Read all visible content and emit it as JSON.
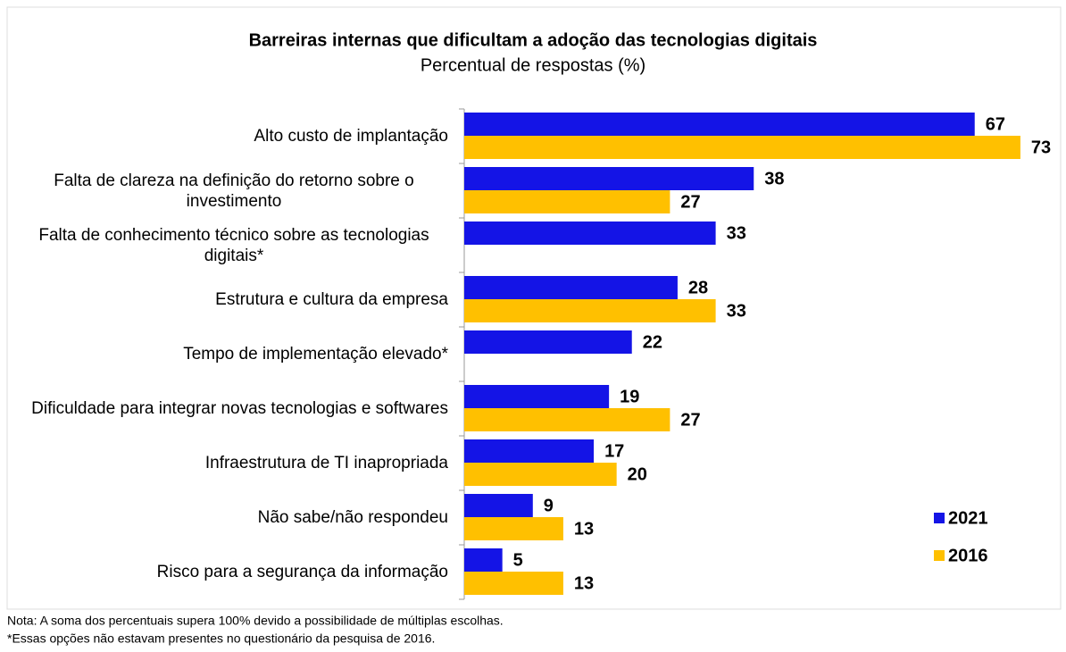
{
  "chart_data": {
    "type": "hbar",
    "title": "Barreiras internas que dificultam a adoção das tecnologias digitais",
    "subtitle": "Percentual de respostas (%)",
    "categories": [
      "Alto custo de implantação",
      "Falta de clareza na definição do retorno sobre o investimento",
      "Falta de conhecimento técnico sobre as tecnologias digitais*",
      "Estrutura e cultura da empresa",
      "Tempo de implementação elevado*",
      "Dificuldade para integrar novas tecnologias e softwares",
      "Infraestrutura de TI inapropriada",
      "Não sabe/não respondeu",
      "Risco para a segurança da informação"
    ],
    "series": [
      {
        "name": "2021",
        "color": "#1414e6",
        "values": [
          67,
          38,
          33,
          28,
          22,
          19,
          17,
          9,
          5
        ]
      },
      {
        "name": "2016",
        "color": "#ffc000",
        "values": [
          73,
          27,
          null,
          33,
          null,
          27,
          20,
          13,
          13
        ]
      }
    ],
    "xlim": [
      0,
      75
    ],
    "legend": "right",
    "notes": [
      "Nota: A soma dos percentuais supera 100% devido a possibilidade de múltiplas escolhas.",
      "*Essas opções não estavam presentes no questionário da pesquisa de 2016."
    ]
  }
}
